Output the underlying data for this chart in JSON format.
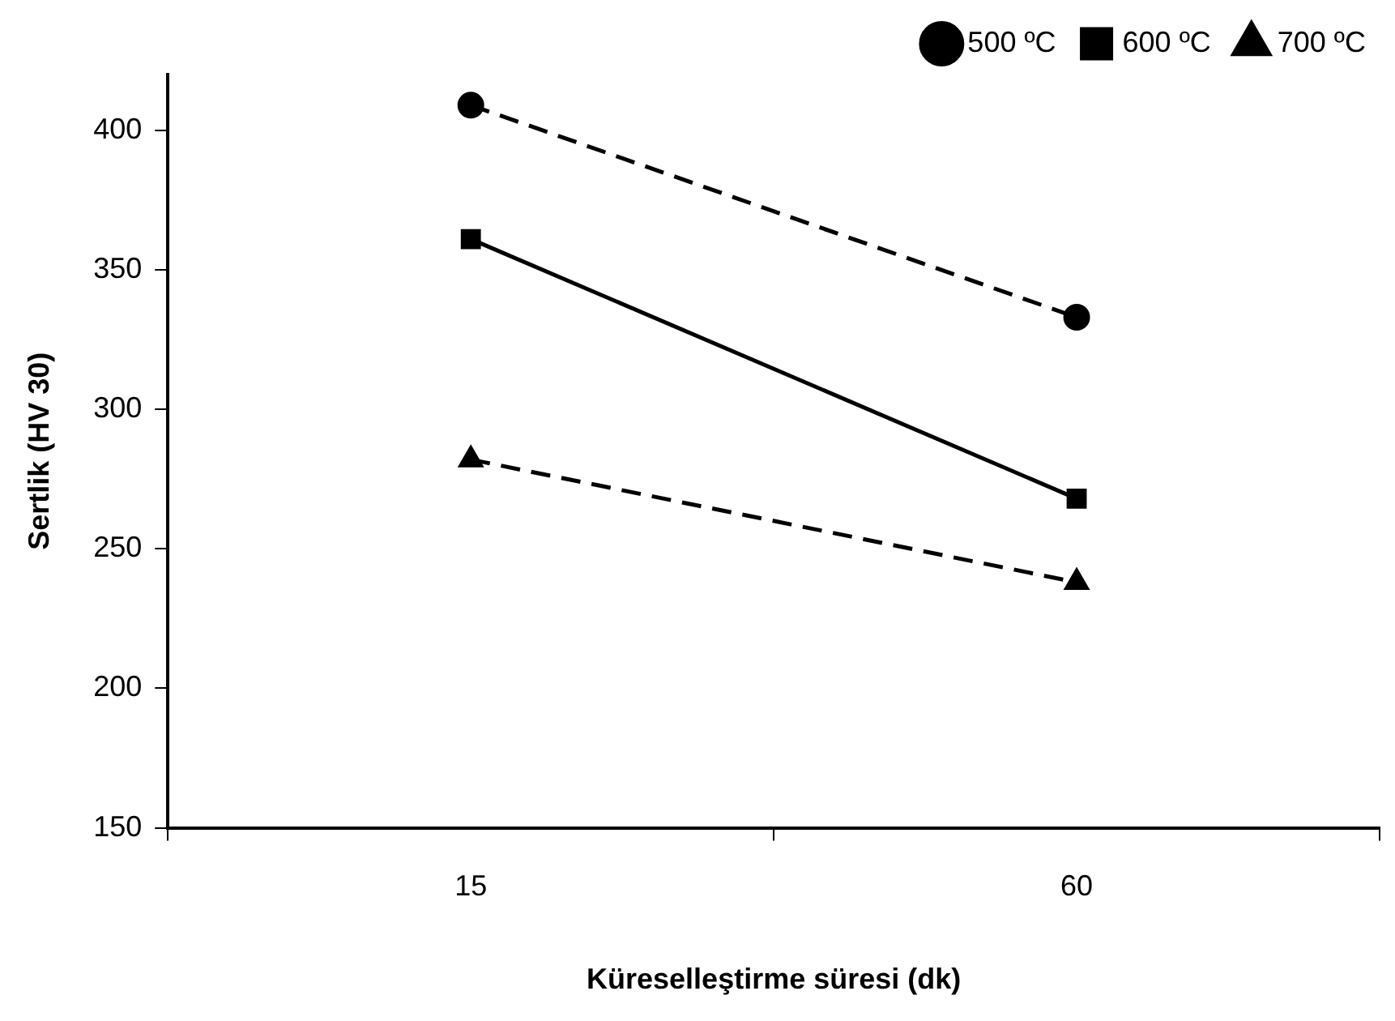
{
  "chart_data": {
    "type": "line",
    "xlabel": "Küreselleştirme süresi (dk)",
    "ylabel": "Sertlik (HV 30)",
    "categories": [
      "15",
      "60"
    ],
    "series": [
      {
        "name": "500 ºC",
        "color": "#000000",
        "values": [
          409,
          333
        ],
        "marker": "circle",
        "line_style": "dashed"
      },
      {
        "name": "600 ºC",
        "color": "#000000",
        "values": [
          361,
          268
        ],
        "marker": "square",
        "line_style": "solid"
      },
      {
        "name": "700 ºC",
        "color": "#000000",
        "values": [
          282,
          238
        ],
        "marker": "triangle",
        "line_style": "dashed"
      }
    ],
    "ylim": [
      150,
      420
    ],
    "yticks": [
      150,
      200,
      250,
      300,
      350,
      400
    ],
    "grid": false,
    "legend": "top right"
  }
}
